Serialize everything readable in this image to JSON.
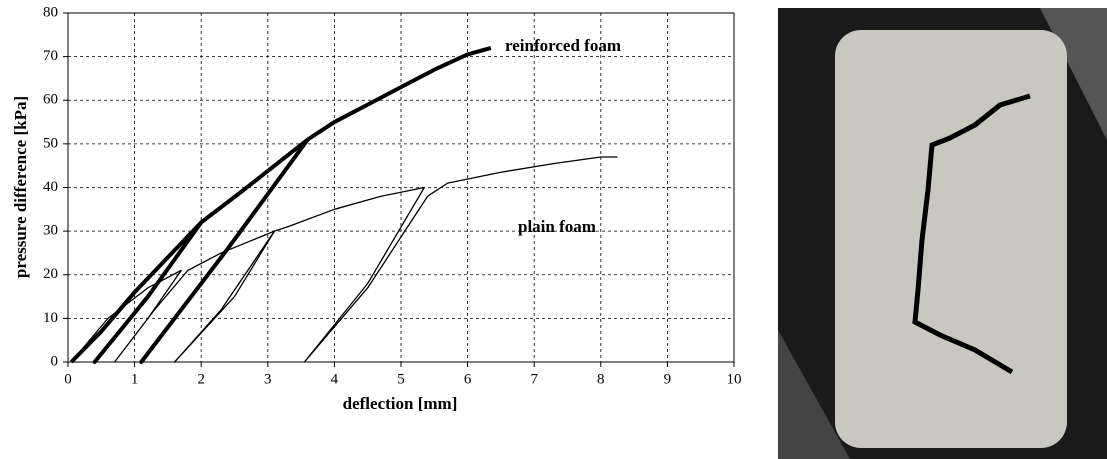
{
  "chart_data": {
    "type": "line",
    "xlabel": "deflection [mm]",
    "ylabel": "pressure difference [kPa]",
    "xlim": [
      0,
      10
    ],
    "xticks": [
      0,
      1,
      2,
      3,
      4,
      5,
      6,
      7,
      8,
      9,
      10
    ],
    "ylim": [
      0,
      80
    ],
    "yticks": [
      0,
      10,
      20,
      30,
      40,
      50,
      60,
      70,
      80
    ],
    "grid": true,
    "series": [
      {
        "name": "reinforced foam",
        "color": "#000000",
        "x": [
          0.05,
          0.5,
          1,
          1.5,
          2,
          1.2,
          0.4,
          1.2,
          2,
          2.6,
          3.1,
          3.6,
          2.4,
          1.1,
          2.4,
          3.6,
          4,
          4.5,
          5,
          5.5,
          6,
          6.35
        ],
        "values": [
          0,
          7,
          16,
          24,
          32,
          15,
          0,
          15,
          32,
          39,
          45,
          51,
          26,
          0,
          26,
          51,
          55,
          59,
          63,
          67,
          70.5,
          72
        ]
      },
      {
        "name": "plain foam",
        "color": "#000000",
        "x": [
          0.05,
          0.6,
          1.2,
          1.7,
          1.2,
          0.7,
          1.3,
          1.8,
          2.3,
          3.1,
          2.5,
          1.6,
          2.3,
          3.1,
          3.3,
          4,
          4.7,
          5.35,
          4.5,
          3.55,
          4.5,
          5.4,
          5.7,
          6.5,
          7.3,
          8,
          8.25
        ],
        "values": [
          0,
          10,
          17,
          21,
          10,
          0,
          12,
          21,
          25,
          30,
          15,
          0,
          12,
          30,
          31,
          35,
          38,
          40,
          18,
          0,
          17,
          38,
          41,
          43.5,
          45.5,
          47,
          47
        ]
      }
    ]
  }
}
